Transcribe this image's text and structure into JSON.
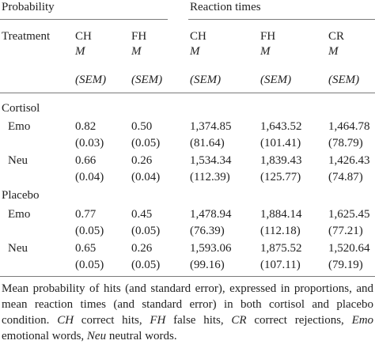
{
  "groups": {
    "probability": "Probability",
    "reaction": "Reaction times"
  },
  "header": {
    "treatment": "Treatment",
    "cols": [
      "CH",
      "FH",
      "CH",
      "FH",
      "CR"
    ],
    "m_label": "M",
    "sem_label": "(SEM)"
  },
  "sections": [
    {
      "label": "Cortisol",
      "rows": [
        {
          "label": "Emo",
          "means": [
            "0.82",
            "0.50",
            "1,374.85",
            "1,643.52",
            "1,464.78"
          ],
          "sems": [
            "(0.03)",
            "(0.05)",
            "(81.64)",
            "(101.41)",
            "(78.79)"
          ]
        },
        {
          "label": "Neu",
          "means": [
            "0.66",
            "0.26",
            "1,534.34",
            "1,839.43",
            "1,426.43"
          ],
          "sems": [
            "(0.04)",
            "(0.04)",
            "(112.39)",
            "(125.77)",
            "(74.87)"
          ]
        }
      ]
    },
    {
      "label": "Placebo",
      "rows": [
        {
          "label": "Emo",
          "means": [
            "0.77",
            "0.45",
            "1,478.94",
            "1,884.14",
            "1,625.45"
          ],
          "sems": [
            "(0.05)",
            "(0.05)",
            "(76.39)",
            "(112.18)",
            "(77.21)"
          ]
        },
        {
          "label": "Neu",
          "means": [
            "0.65",
            "0.26",
            "1,593.06",
            "1,875.52",
            "1,520.64"
          ],
          "sems": [
            "(0.05)",
            "(0.05)",
            "(99.16)",
            "(107.11)",
            "(79.19)"
          ]
        }
      ]
    }
  ],
  "caption": {
    "intro": "Mean probability of hits (and standard error), expressed in proportions, and mean reaction times (and standard error) in both cortisol and placebo condition.",
    "abbreviations": [
      {
        "abbr": "CH",
        "text": "correct hits"
      },
      {
        "abbr": "FH",
        "text": "false hits"
      },
      {
        "abbr": "CR",
        "text": "correct rejections"
      },
      {
        "abbr": "Emo",
        "text": "emotional words"
      },
      {
        "abbr": "Neu",
        "text": "neutral words"
      }
    ]
  }
}
